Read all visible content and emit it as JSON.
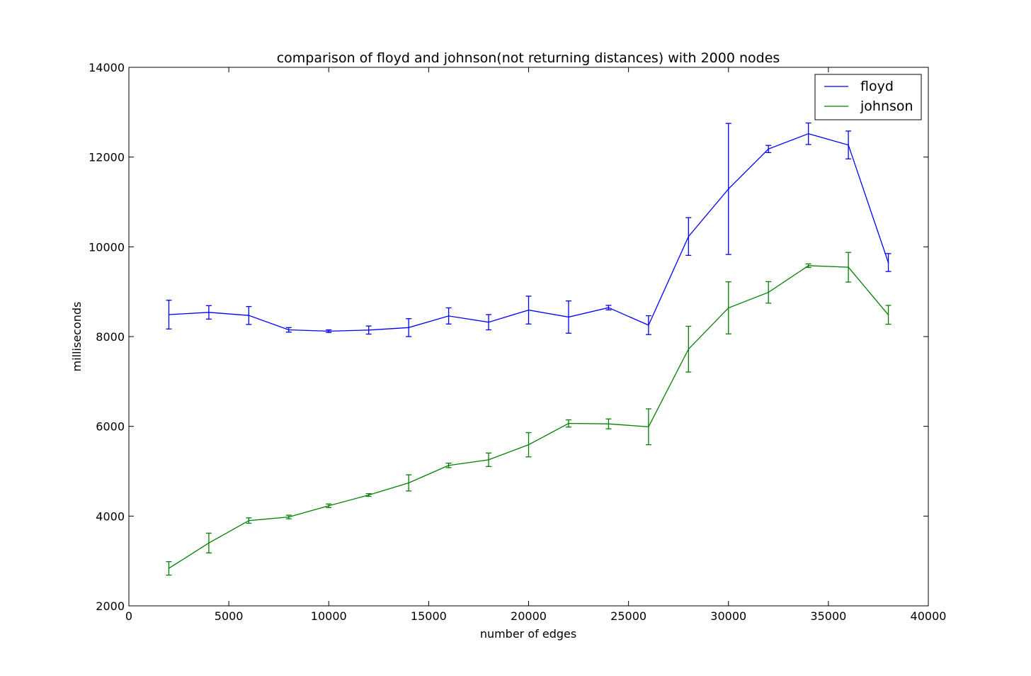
{
  "chart_data": {
    "type": "line",
    "title": "comparison of floyd and johnson(not returning distances) with 2000 nodes",
    "xlabel": "number of edges",
    "ylabel": "milliseconds",
    "xlim": [
      0,
      40000
    ],
    "ylim": [
      2000,
      14000
    ],
    "xticks": [
      0,
      5000,
      10000,
      15000,
      20000,
      25000,
      30000,
      35000,
      40000
    ],
    "yticks": [
      2000,
      4000,
      6000,
      8000,
      10000,
      12000,
      14000
    ],
    "grid": false,
    "legend_position": "top-right",
    "error_bars": true,
    "x": [
      2000,
      4000,
      6000,
      8000,
      10000,
      12000,
      14000,
      16000,
      18000,
      20000,
      22000,
      24000,
      26000,
      28000,
      30000,
      32000,
      34000,
      36000,
      38000
    ],
    "series": [
      {
        "name": "floyd",
        "color": "#0000ff",
        "values": [
          8490,
          8540,
          8470,
          8150,
          8120,
          8145,
          8200,
          8460,
          8320,
          8590,
          8435,
          8645,
          8255,
          10230,
          11290,
          12180,
          12520,
          12270,
          9650
        ],
        "errors": [
          320,
          150,
          200,
          50,
          30,
          90,
          200,
          180,
          170,
          310,
          360,
          50,
          210,
          420,
          1460,
          80,
          240,
          310,
          200
        ]
      },
      {
        "name": "johnson",
        "color": "#008000",
        "values": [
          2835,
          3400,
          3900,
          3980,
          4230,
          4470,
          4740,
          5130,
          5255,
          5590,
          6065,
          6055,
          5990,
          7720,
          8640,
          8985,
          9580,
          9545,
          8485
        ],
        "errors": [
          150,
          220,
          60,
          40,
          40,
          30,
          180,
          50,
          150,
          270,
          80,
          110,
          400,
          510,
          580,
          240,
          40,
          330,
          210
        ]
      }
    ]
  }
}
